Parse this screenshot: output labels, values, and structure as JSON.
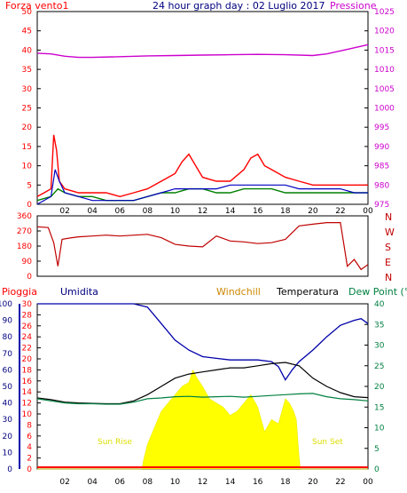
{
  "colors": {
    "wind": "#ff0000",
    "gust": "#ff0000",
    "avg_wind": "#008000",
    "wind_blue": "#0000c0",
    "pressure": "#cc00cc",
    "direction": "#c00000",
    "humidity": "#0000aa",
    "temperature": "#000000",
    "dewpoint": "#008040",
    "rain": "#ff0000",
    "windchill": "#cc8800",
    "sun": "#ffff00",
    "axis": "#000000",
    "grid": "#000000"
  },
  "chart_data": [
    {
      "type": "line",
      "title": "24 hour graph day : 02 Luglio 2017",
      "left_axis_label": "Forza vento1",
      "right_axis_label": "Pressione",
      "x_ticks": [
        "02",
        "04",
        "06",
        "08",
        "10",
        "12",
        "14",
        "16",
        "18",
        "20",
        "22",
        "00"
      ],
      "left_ylim": [
        0,
        50
      ],
      "left_ticks": [
        "0",
        "5",
        "10",
        "15",
        "20",
        "25",
        "30",
        "35",
        "40",
        "45",
        "50"
      ],
      "right_ylim": [
        975,
        1025
      ],
      "right_ticks": [
        "975",
        "980",
        "985",
        "990",
        "995",
        "1000",
        "1005",
        "1010",
        "1015",
        "1020",
        "1025"
      ],
      "series": [
        {
          "key": "pressure",
          "values_x": [
            0,
            1,
            2,
            3,
            4,
            6,
            8,
            10,
            12,
            14,
            16,
            18,
            20,
            21,
            22,
            23,
            24
          ],
          "values_y": [
            1014.2,
            1014.0,
            1013.4,
            1013.1,
            1013.1,
            1013.3,
            1013.5,
            1013.6,
            1013.7,
            1013.8,
            1013.9,
            1013.8,
            1013.6,
            1014.0,
            1014.8,
            1015.6,
            1016.4
          ]
        },
        {
          "key": "gust",
          "values_x": [
            0,
            0.5,
            1,
            1.2,
            1.4,
            1.6,
            2,
            3,
            4,
            5,
            6,
            7,
            8,
            9,
            10,
            10.5,
            11,
            11.5,
            12,
            13,
            14,
            15,
            15.5,
            16,
            16.5,
            17,
            18,
            19,
            20,
            21,
            22,
            23,
            24
          ],
          "values_y": [
            2,
            3,
            4,
            18,
            14,
            6,
            4,
            3,
            3,
            3,
            2,
            3,
            4,
            6,
            8,
            11,
            13,
            10,
            7,
            6,
            6,
            9,
            12,
            13,
            10,
            9,
            7,
            6,
            5,
            5,
            5,
            5,
            5
          ]
        },
        {
          "key": "avg_wind",
          "values_x": [
            0,
            1,
            1.5,
            2,
            3,
            4,
            5,
            6,
            7,
            8,
            9,
            10,
            11,
            12,
            13,
            14,
            15,
            16,
            17,
            18,
            19,
            20,
            21,
            22,
            23,
            24
          ],
          "values_y": [
            1,
            2,
            4,
            3,
            2,
            2,
            1,
            1,
            1,
            2,
            3,
            3,
            4,
            4,
            3,
            3,
            4,
            4,
            4,
            3,
            3,
            3,
            3,
            3,
            3,
            3
          ]
        },
        {
          "key": "wind_blue",
          "values_x": [
            0,
            1,
            1.3,
            1.6,
            2,
            3,
            4,
            5,
            6,
            7,
            8,
            9,
            10,
            11,
            12,
            13,
            14,
            15,
            16,
            17,
            18,
            19,
            20,
            21,
            22,
            23,
            24
          ],
          "values_y": [
            0,
            2,
            9,
            6,
            3,
            2,
            1,
            1,
            1,
            1,
            2,
            3,
            4,
            4,
            4,
            4,
            5,
            5,
            5,
            5,
            5,
            4,
            4,
            4,
            4,
            3,
            3
          ]
        }
      ]
    },
    {
      "type": "line",
      "title": "",
      "right_axis_letters": [
        "N",
        "W",
        "S",
        "E",
        "N"
      ],
      "ylim": [
        0,
        360
      ],
      "y_ticks": [
        "0",
        "90",
        "180",
        "270",
        "360"
      ],
      "series": [
        {
          "key": "direction",
          "values_x": [
            0,
            0.8,
            1.2,
            1.5,
            1.8,
            2.5,
            3,
            4,
            5,
            6,
            8,
            9,
            10,
            11,
            12,
            13,
            14,
            15,
            16,
            17,
            18,
            19,
            20,
            21,
            22,
            22.5,
            23,
            23.5,
            24
          ],
          "values_y": [
            295,
            290,
            200,
            60,
            220,
            230,
            235,
            240,
            245,
            240,
            250,
            230,
            190,
            180,
            175,
            240,
            210,
            205,
            195,
            200,
            220,
            300,
            310,
            320,
            320,
            60,
            100,
            40,
            70
          ]
        }
      ]
    },
    {
      "type": "area",
      "title": "",
      "legend": [
        "Pioggia",
        "Umidita",
        "Windchill",
        "Temperatura",
        "Dew Point (°C"
      ],
      "annotations": [
        "Sun Rise",
        "Sun Set"
      ],
      "left_ticks_humidity": [
        "0",
        "10",
        "20",
        "30",
        "40",
        "50",
        "60",
        "70",
        "80",
        "90",
        "100"
      ],
      "left_ticks_rain": [
        "0",
        "2",
        "4",
        "6",
        "8",
        "10",
        "12",
        "14",
        "16",
        "18",
        "20",
        "22",
        "24",
        "26",
        "28",
        "30"
      ],
      "right_ylim": [
        0,
        40
      ],
      "right_ticks": [
        "0",
        "5",
        "10",
        "15",
        "20",
        "25",
        "30",
        "35",
        "40"
      ],
      "x_ticks": [
        "02",
        "04",
        "06",
        "08",
        "10",
        "12",
        "14",
        "16",
        "18",
        "20",
        "22",
        "00"
      ],
      "series": [
        {
          "key": "humidity",
          "values_x": [
            0,
            2,
            4,
            6,
            7,
            8,
            9,
            10,
            11,
            12,
            13,
            14,
            15,
            16,
            17,
            17.5,
            18,
            18.5,
            19,
            20,
            21,
            22,
            23,
            23.5,
            24
          ],
          "values_y": [
            100,
            100,
            100,
            100,
            100,
            98,
            88,
            78,
            72,
            68,
            67,
            66,
            66,
            66,
            65,
            62,
            54,
            60,
            65,
            72,
            80,
            87,
            90,
            91,
            88
          ]
        },
        {
          "key": "temperature",
          "values_x": [
            0,
            1,
            2,
            3,
            4,
            5,
            6,
            7,
            8,
            9,
            10,
            11,
            12,
            13,
            14,
            15,
            16,
            17,
            18,
            19,
            20,
            21,
            22,
            23,
            24
          ],
          "values_y": [
            17.2,
            16.8,
            16.2,
            16,
            15.9,
            15.8,
            15.8,
            16.5,
            18,
            20,
            22,
            23,
            23.5,
            24,
            24.5,
            24.5,
            25,
            25.5,
            25.8,
            25,
            22,
            20,
            18.5,
            17.5,
            17.3
          ]
        },
        {
          "key": "dewpoint",
          "values_x": [
            0,
            1,
            2,
            3,
            4,
            5,
            6,
            7,
            8,
            9,
            10,
            11,
            12,
            13,
            14,
            15,
            16,
            17,
            18,
            19,
            20,
            21,
            22,
            23,
            24
          ],
          "values_y": [
            17,
            16.5,
            16,
            15.8,
            15.8,
            15.7,
            15.7,
            16.2,
            17,
            17.2,
            17.5,
            17.6,
            17.4,
            17.5,
            17.6,
            17.4,
            17.6,
            17.8,
            18,
            18.2,
            18.3,
            17.5,
            17,
            16.8,
            16.5
          ]
        },
        {
          "key": "sun",
          "values_x": [
            0,
            7.6,
            7.7,
            8,
            8.5,
            9,
            9.5,
            10,
            10.5,
            11,
            11.3,
            11.6,
            12,
            12.5,
            13,
            13.5,
            14,
            14.5,
            15,
            15.5,
            16,
            16.5,
            17,
            17.5,
            18,
            18.3,
            18.6,
            18.8,
            19,
            19.1,
            24
          ],
          "values_y": [
            0,
            0,
            2,
            6,
            10,
            14,
            16,
            18,
            20,
            21,
            24,
            22,
            20,
            17,
            16,
            15,
            13,
            14,
            16,
            18,
            15,
            9,
            12,
            11,
            17,
            16,
            14,
            12,
            3,
            0,
            0
          ]
        },
        {
          "key": "rain",
          "values_x": [
            0,
            24
          ],
          "values_y": [
            0.3,
            0.3
          ]
        }
      ]
    }
  ]
}
